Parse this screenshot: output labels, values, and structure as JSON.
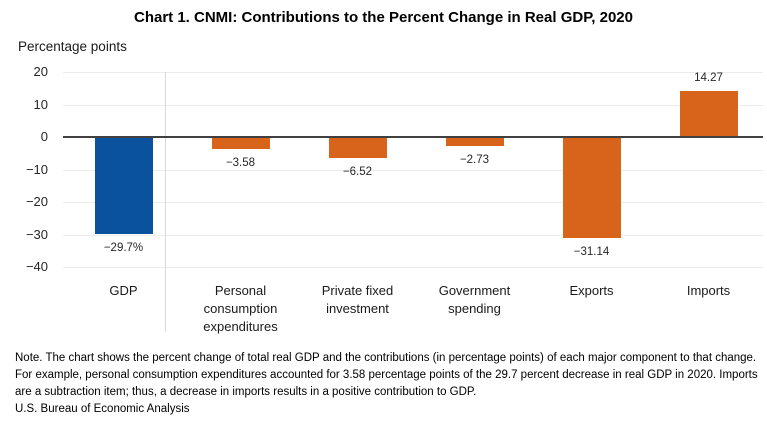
{
  "header": {
    "title": "Chart 1. CNMI: Contributions to the Percent Change in Real GDP, 2020",
    "unit_label": "Percentage points"
  },
  "chart_data": {
    "type": "bar",
    "title": "Chart 1. CNMI: Contributions to the Percent Change in Real GDP, 2020",
    "ylabel": "Percentage points",
    "categories": [
      "GDP",
      "Personal consumption expenditures",
      "Private fixed investment",
      "Government spending",
      "Exports",
      "Imports"
    ],
    "values": [
      -29.7,
      -3.58,
      -6.52,
      -2.73,
      -31.14,
      14.27
    ],
    "display_labels": [
      "−29.7%",
      "−3.58",
      "−6.52",
      "−2.73",
      "−31.14",
      "14.27"
    ],
    "colors": [
      "#0a529e",
      "#d8641c",
      "#d8641c",
      "#d8641c",
      "#d8641c",
      "#d8641c"
    ],
    "ylim": [
      -40,
      20
    ],
    "yticks": [
      20,
      10,
      0,
      -10,
      -20,
      -30,
      -40
    ],
    "grid": "horizontal",
    "legend": "none",
    "separator_after_first_category": true
  },
  "colors": {
    "gdp_bar": "#0a529e",
    "component_bar": "#d8641c",
    "gridline": "#ececec",
    "zero_axis": "#404040",
    "separator": "#d9d9d9"
  },
  "note": {
    "text": "Note. The chart shows the percent change of total real GDP and the contributions (in percentage points) of each major component to that change. For example, personal consumption expenditures accounted for 3.58 percentage points of the 29.7 percent decrease in real GDP in 2020. Imports are a subtraction item; thus, a decrease in imports results in a positive contribution to GDP.",
    "source": "U.S. Bureau of Economic Analysis"
  }
}
